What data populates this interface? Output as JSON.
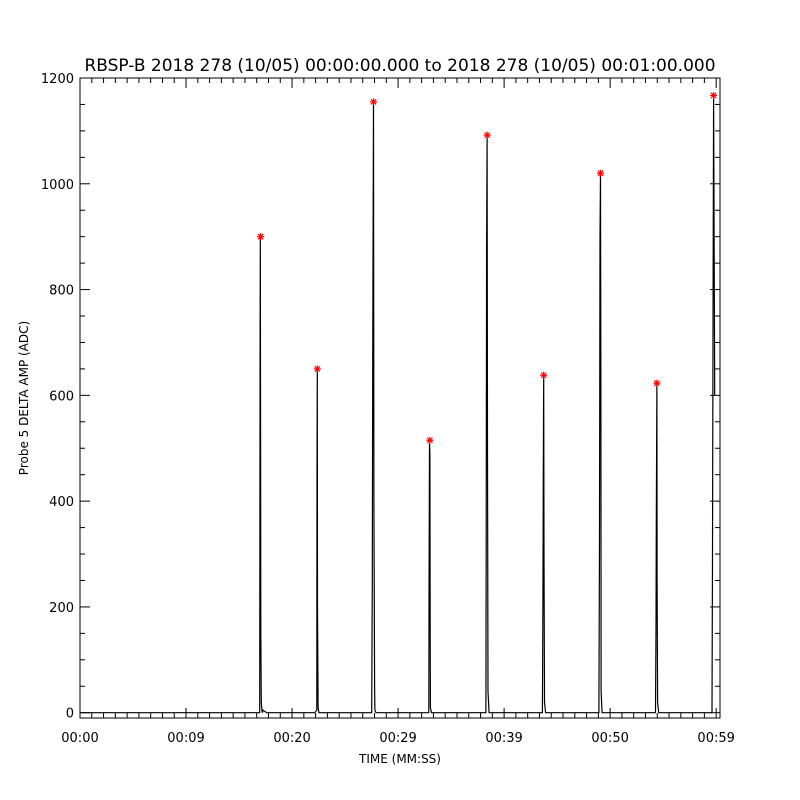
{
  "chart_data": {
    "type": "line",
    "title": "RBSP-B 2018 278 (10/05) 00:00:00.000 to 2018 278 (10/05) 00:01:00.000",
    "xlabel": "TIME (MM:SS)",
    "ylabel": "Probe 5 DELTA AMP (ADC)",
    "xlim": [
      0,
      60
    ],
    "ylim": [
      -10,
      1200
    ],
    "x_tick_values": [
      0,
      9.94,
      19.88,
      29.82,
      39.76,
      49.7,
      59.64
    ],
    "x_tick_labels": [
      "00:00",
      "00:09",
      "00:20",
      "00:29",
      "00:39",
      "00:50",
      "00:59"
    ],
    "y_ticks": [
      0,
      200,
      400,
      600,
      800,
      1000,
      1200
    ],
    "grid": false,
    "series": [
      {
        "x": [
          16.85,
          16.88,
          16.9,
          16.93,
          16.95,
          17.0,
          17.05,
          17.1,
          17.15,
          17.5,
          18.0,
          22.0,
          22.2,
          22.22,
          22.25,
          22.27,
          22.32,
          22.4,
          27.35,
          27.4,
          27.45,
          27.52,
          27.55,
          27.62,
          27.65,
          27.75,
          32.7,
          32.73,
          32.77,
          32.8,
          32.83,
          32.85,
          32.95,
          38.05,
          38.08,
          38.12,
          38.17,
          38.2,
          38.25,
          38.35,
          43.35,
          43.4,
          43.43,
          43.47,
          43.5,
          43.55,
          43.65,
          48.65,
          48.7,
          48.75,
          48.8,
          48.83,
          48.85,
          48.95,
          53.95,
          54.0,
          54.03,
          54.08,
          54.1,
          54.15,
          54.25,
          59.25,
          59.3,
          59.35,
          59.4,
          59.5
        ],
        "y": [
          0,
          700,
          900,
          500,
          150,
          20,
          5,
          0,
          5,
          0,
          0,
          0,
          5,
          450,
          650,
          200,
          10,
          0,
          0,
          250,
          730,
          1155,
          400,
          50,
          5,
          0,
          0,
          270,
          510,
          490,
          150,
          10,
          0,
          0,
          340,
          880,
          1090,
          500,
          40,
          0,
          0,
          200,
          460,
          635,
          300,
          20,
          0,
          0,
          330,
          900,
          1020,
          600,
          40,
          0,
          0,
          160,
          360,
          620,
          250,
          20,
          0,
          0,
          300,
          800,
          1165,
          600
        ]
      },
      {
        "marker": "asterisk",
        "x": [
          16.93,
          22.25,
          27.52,
          32.8,
          38.17,
          43.47,
          48.8,
          54.08,
          59.4
        ],
        "y": [
          900,
          650,
          1155,
          515,
          1092,
          638,
          1020,
          623,
          1167
        ]
      }
    ],
    "colors": {
      "line": "#000000",
      "marker": "#ff0000"
    }
  }
}
